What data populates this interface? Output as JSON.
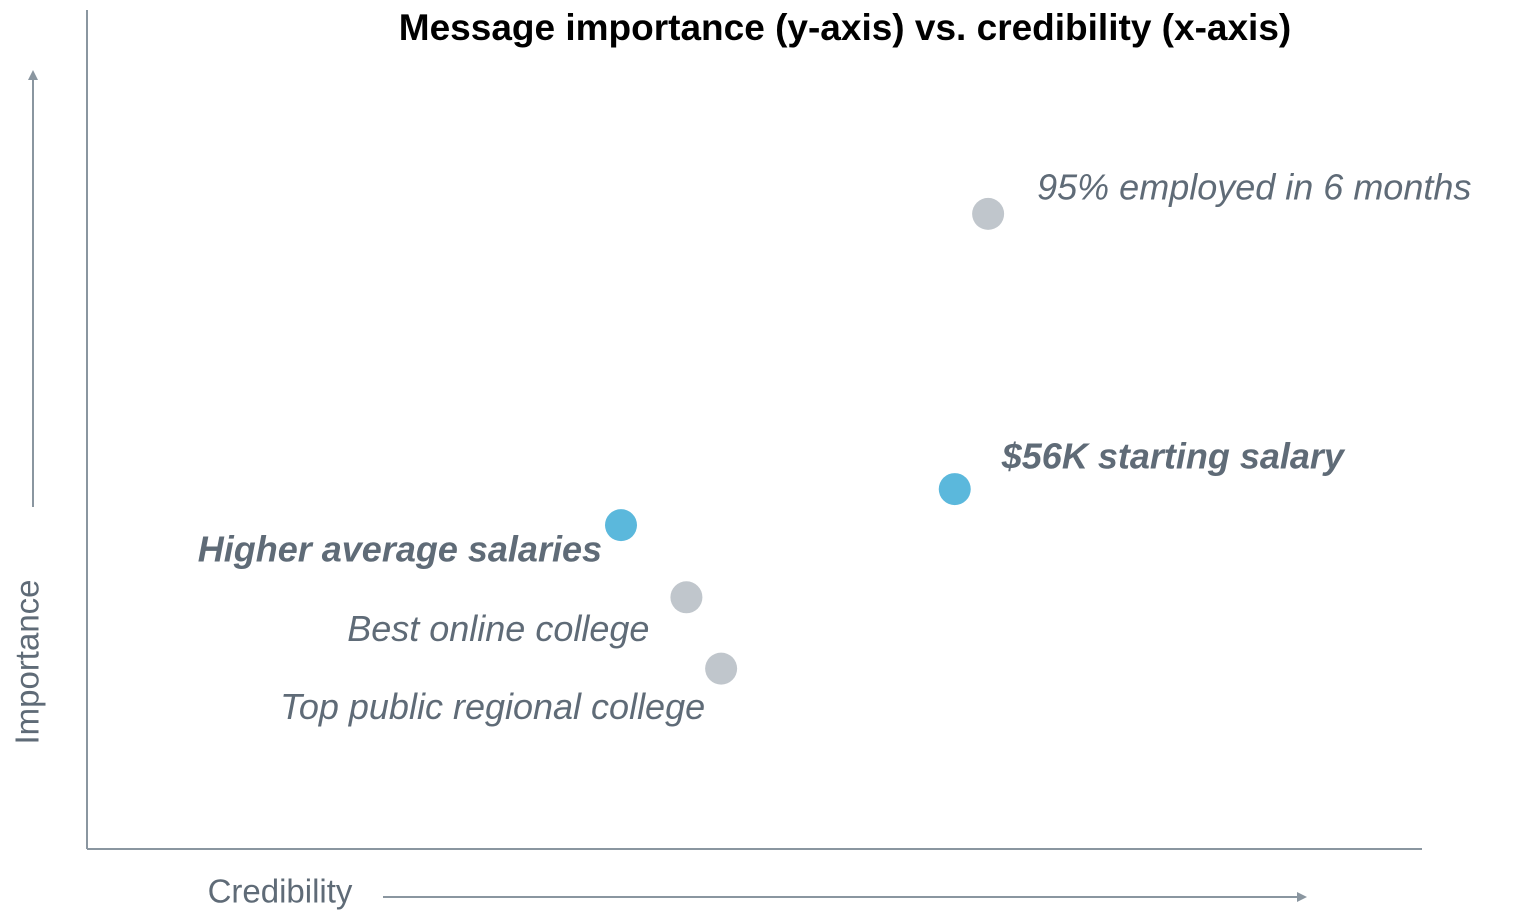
{
  "chart_data": {
    "type": "scatter",
    "title": "Message importance (y-axis) vs. credibility (x-axis)",
    "xlabel": "Credibility",
    "ylabel": "Importance",
    "xlim": [
      0,
      100
    ],
    "ylim": [
      0,
      100
    ],
    "points": [
      {
        "label": "95% employed in 6 months",
        "x": 67.5,
        "y": 75.7,
        "color": "#c0c6cc",
        "highlight": false
      },
      {
        "label": "$56K starting salary",
        "x": 65.0,
        "y": 42.9,
        "color": "#5bb8dc",
        "highlight": true
      },
      {
        "label": "Higher average salaries",
        "x": 40.0,
        "y": 38.6,
        "color": "#5bb8dc",
        "highlight": true
      },
      {
        "label": "Best online college",
        "x": 44.9,
        "y": 30.0,
        "color": "#c0c6cc",
        "highlight": false
      },
      {
        "label": "Top public regional college",
        "x": 47.5,
        "y": 21.5,
        "color": "#c0c6cc",
        "highlight": false
      }
    ]
  }
}
